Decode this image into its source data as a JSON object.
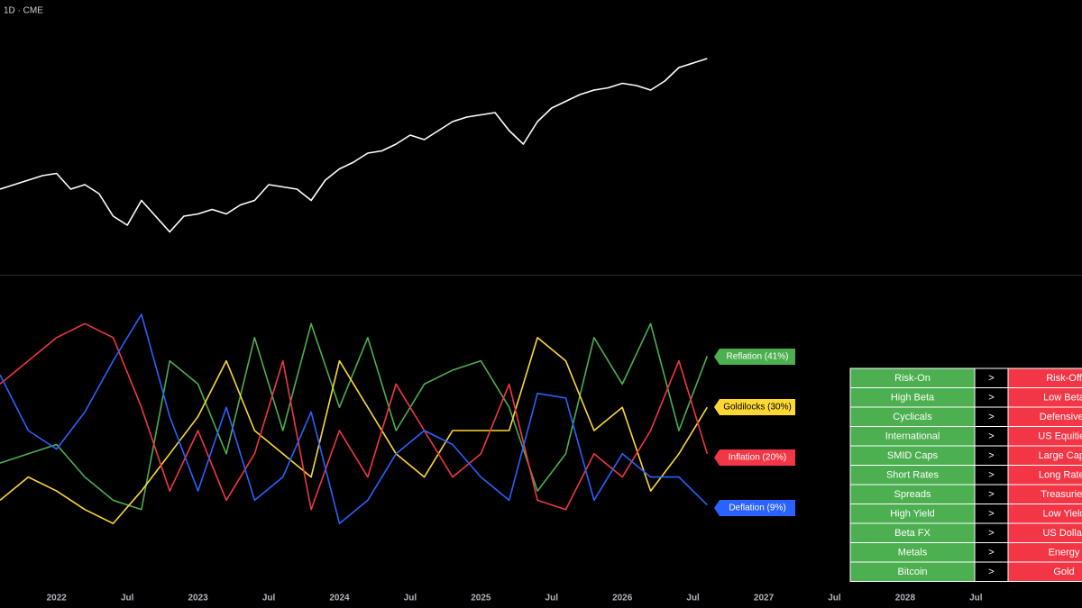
{
  "chart_data": [
    {
      "type": "line",
      "title": "1D · CME",
      "x": [
        2021.6,
        2021.7,
        2021.8,
        2021.9,
        2022.0,
        2022.1,
        2022.2,
        2022.3,
        2022.4,
        2022.5,
        2022.6,
        2022.7,
        2022.8,
        2022.9,
        2023.0,
        2023.1,
        2023.2,
        2023.3,
        2023.4,
        2023.5,
        2023.6,
        2023.7,
        2023.8,
        2023.9,
        2024.0,
        2024.1,
        2024.2,
        2024.3,
        2024.4,
        2024.5,
        2024.6,
        2024.7,
        2024.8,
        2024.9,
        2025.0,
        2025.1,
        2025.2,
        2025.3,
        2025.4,
        2025.5,
        2025.6,
        2025.7,
        2025.8,
        2025.9,
        2026.0,
        2026.1,
        2026.2,
        2026.3,
        2026.4,
        2026.5,
        2026.6
      ],
      "series": [
        {
          "color": "#ffffff",
          "values": [
            36,
            38,
            40,
            42,
            43,
            36,
            38,
            34,
            24,
            20,
            31,
            24,
            17,
            24,
            25,
            27,
            25,
            29,
            31,
            38,
            37,
            36,
            31,
            40,
            45,
            48,
            52,
            53,
            56,
            60,
            58,
            62,
            66,
            68,
            69,
            70,
            62,
            56,
            66,
            72,
            75,
            78,
            80,
            81,
            83,
            82,
            80,
            84,
            90,
            92,
            94
          ]
        }
      ],
      "xlim": [
        2021.6,
        2029.25
      ],
      "ylim": [
        0,
        100
      ]
    },
    {
      "type": "line",
      "x": [
        2021.6,
        2021.8,
        2022.0,
        2022.2,
        2022.4,
        2022.6,
        2022.8,
        2023.0,
        2023.2,
        2023.4,
        2023.6,
        2023.8,
        2024.0,
        2024.2,
        2024.4,
        2024.6,
        2024.8,
        2025.0,
        2025.2,
        2025.4,
        2025.6,
        2025.8,
        2026.0,
        2026.2,
        2026.4,
        2026.6
      ],
      "series": [
        {
          "name": "Reflation (41%)",
          "color": "#4caf50",
          "values": [
            18,
            20,
            22,
            15,
            10,
            8,
            40,
            35,
            20,
            45,
            25,
            48,
            30,
            45,
            25,
            35,
            38,
            40,
            30,
            12,
            20,
            45,
            35,
            48,
            25,
            41
          ]
        },
        {
          "name": "Goldilocks (30%)",
          "color": "#fdd835",
          "values": [
            10,
            15,
            12,
            8,
            5,
            12,
            20,
            28,
            40,
            25,
            20,
            15,
            40,
            30,
            20,
            15,
            25,
            25,
            25,
            45,
            40,
            25,
            30,
            12,
            20,
            30
          ]
        },
        {
          "name": "Inflation (20%)",
          "color": "#f23645",
          "values": [
            35,
            40,
            45,
            48,
            45,
            30,
            12,
            25,
            10,
            20,
            40,
            8,
            25,
            15,
            35,
            25,
            15,
            20,
            35,
            10,
            8,
            20,
            15,
            25,
            40,
            20
          ]
        },
        {
          "name": "Deflation (9%)",
          "color": "#2962ff",
          "values": [
            37,
            25,
            21,
            29,
            40,
            50,
            28,
            12,
            30,
            10,
            15,
            29,
            5,
            10,
            20,
            25,
            22,
            15,
            10,
            33,
            32,
            10,
            20,
            15,
            15,
            9
          ]
        }
      ],
      "xlim": [
        2021.6,
        2029.25
      ],
      "ylim": [
        0,
        50
      ],
      "xticks": [
        {
          "value": 2022,
          "label": "2022"
        },
        {
          "value": 2022.5,
          "label": "Jul"
        },
        {
          "value": 2023,
          "label": "2023"
        },
        {
          "value": 2023.5,
          "label": "Jul"
        },
        {
          "value": 2024,
          "label": "2024"
        },
        {
          "value": 2024.5,
          "label": "Jul"
        },
        {
          "value": 2025,
          "label": "2025"
        },
        {
          "value": 2025.5,
          "label": "Jul"
        },
        {
          "value": 2026,
          "label": "2026"
        },
        {
          "value": 2026.5,
          "label": "Jul"
        },
        {
          "value": 2027,
          "label": "2027"
        },
        {
          "value": 2027.5,
          "label": "Jul"
        },
        {
          "value": 2028,
          "label": "2028"
        },
        {
          "value": 2028.5,
          "label": "Jul"
        }
      ]
    }
  ],
  "table": {
    "rows": [
      [
        "Risk-On",
        ">",
        "Risk-Off"
      ],
      [
        "High Beta",
        ">",
        "Low Beta"
      ],
      [
        "Cyclicals",
        ">",
        "Defensives"
      ],
      [
        "International",
        ">",
        "US Equities"
      ],
      [
        "SMID Caps",
        ">",
        "Large Caps"
      ],
      [
        "Short Rates",
        ">",
        "Long Rates"
      ],
      [
        "Spreads",
        ">",
        "Treasuries"
      ],
      [
        "High Yield",
        ">",
        "Low Yield"
      ],
      [
        "Beta FX",
        ">",
        "US Dollar"
      ],
      [
        "Metals",
        ">",
        "Energy"
      ],
      [
        "Bitcoin",
        ">",
        "Gold"
      ]
    ]
  }
}
